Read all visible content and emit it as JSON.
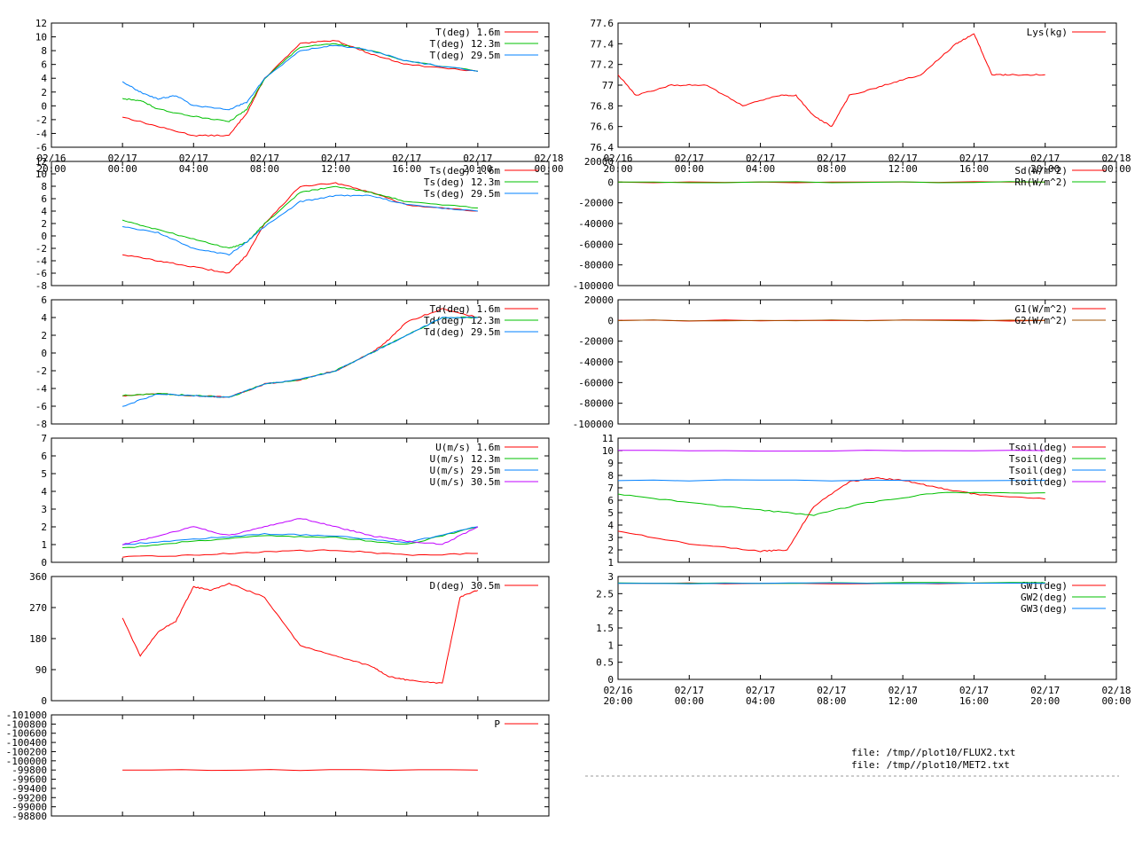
{
  "files": {
    "line1": "file: /tmp//plot10/FLUX2.txt",
    "line2": "file: /tmp//plot10/MET2.txt"
  },
  "colors": {
    "red": "#ff0000",
    "green": "#00c000",
    "blue": "#0080ff",
    "purple": "#c000ff",
    "dark_red": "#c00000",
    "brown": "#a05000",
    "magenta": "#ff00ff",
    "cyan": "#00c0c0"
  },
  "chart_data": [
    {
      "type": "line",
      "x_ticks": [
        "02/16\n20:00",
        "02/17\n00:00",
        "02/17\n04:00",
        "02/17\n08:00",
        "02/17\n12:00",
        "02/17\n16:00",
        "02/17\n20:00",
        "02/18\n00:00"
      ],
      "ylim": [
        -6,
        12
      ],
      "y_ticks": [
        "12",
        "10",
        "8",
        "6",
        "4",
        "2",
        "0",
        "-2",
        "-4",
        "-6"
      ],
      "grid": false,
      "legend": "top-right",
      "series": [
        {
          "name": "T(deg)  1.6m",
          "color": "#ff0000",
          "x": [
            4,
            6,
            8,
            10,
            11,
            12,
            14,
            16,
            18,
            20,
            24
          ],
          "y": [
            -1.6,
            -3,
            -4.3,
            -4.3,
            -1,
            4,
            9,
            9.5,
            7.5,
            6,
            5
          ]
        },
        {
          "name": "T(deg) 12.3m",
          "color": "#00c000",
          "x": [
            4,
            5,
            6,
            8,
            10,
            11,
            12,
            14,
            16,
            18,
            20,
            24
          ],
          "y": [
            1,
            0.8,
            -0.5,
            -1.5,
            -2.3,
            -0.5,
            4,
            8.5,
            9,
            8,
            6.5,
            5
          ]
        },
        {
          "name": "T(deg) 29.5m",
          "color": "#0080ff",
          "x": [
            4,
            5,
            6,
            7,
            8,
            10,
            11,
            12,
            14,
            16,
            18,
            20,
            24
          ],
          "y": [
            3.5,
            2,
            1,
            1.5,
            0,
            -0.5,
            0.5,
            4,
            8,
            8.8,
            8,
            6.5,
            5
          ]
        }
      ]
    },
    {
      "type": "line",
      "ylim": [
        -8,
        12
      ],
      "y_ticks": [
        "12",
        "10",
        "8",
        "6",
        "4",
        "2",
        "0",
        "-2",
        "-4",
        "-6",
        "-8"
      ],
      "legend": "top-right",
      "series": [
        {
          "name": "Ts(deg)  1.6m",
          "color": "#ff0000",
          "x": [
            4,
            6,
            8,
            10,
            11,
            12,
            14,
            16,
            18,
            20,
            24
          ],
          "y": [
            -3,
            -4,
            -5,
            -6,
            -3,
            2,
            8,
            8.5,
            7,
            5,
            4
          ]
        },
        {
          "name": "Ts(deg) 12.3m",
          "color": "#00c000",
          "x": [
            4,
            6,
            8,
            10,
            11,
            12,
            14,
            16,
            18,
            20,
            24
          ],
          "y": [
            2.5,
            1,
            -0.5,
            -2,
            -1,
            2,
            7,
            8,
            7,
            5.5,
            4.5
          ]
        },
        {
          "name": "Ts(deg) 29.5m",
          "color": "#0080ff",
          "x": [
            4,
            6,
            8,
            10,
            11,
            12,
            14,
            16,
            18,
            20,
            24
          ],
          "y": [
            1.5,
            0.5,
            -2,
            -3,
            -1,
            1.5,
            5.5,
            6.5,
            6.5,
            5,
            4
          ]
        }
      ]
    },
    {
      "type": "line",
      "ylim": [
        -8,
        6
      ],
      "y_ticks": [
        "6",
        "4",
        "2",
        "0",
        "-2",
        "-4",
        "-6",
        "-8"
      ],
      "legend": "top-right",
      "series": [
        {
          "name": "Td(deg)  1.6m",
          "color": "#ff0000",
          "x": [
            4,
            6,
            8,
            10,
            12,
            14,
            16,
            18,
            19,
            20,
            22,
            24
          ],
          "y": [
            -4.8,
            -4.6,
            -4.8,
            -5,
            -3.5,
            -3,
            -2,
            0,
            1.5,
            3.5,
            5,
            4
          ]
        },
        {
          "name": "Td(deg) 12.3m",
          "color": "#00c000",
          "x": [
            4,
            6,
            8,
            10,
            12,
            14,
            16,
            18,
            20,
            22,
            24
          ],
          "y": [
            -4.8,
            -4.6,
            -4.8,
            -5,
            -3.5,
            -3,
            -2,
            0,
            2,
            4,
            4
          ]
        },
        {
          "name": "Td(deg) 29.5m",
          "color": "#0080ff",
          "x": [
            4,
            6,
            8,
            10,
            12,
            14,
            16,
            18,
            20,
            22,
            24
          ],
          "y": [
            -6,
            -4.6,
            -4.8,
            -5,
            -3.5,
            -3,
            -2,
            0,
            2,
            4,
            4
          ]
        }
      ]
    },
    {
      "type": "line",
      "ylim": [
        0,
        7
      ],
      "y_ticks": [
        "7",
        "6",
        "5",
        "4",
        "3",
        "2",
        "1",
        "0"
      ],
      "legend": "top-right",
      "series": [
        {
          "name": "U(m/s)  1.6m",
          "color": "#ff0000",
          "x": [
            4,
            8,
            12,
            16,
            20,
            24
          ],
          "y": [
            0.3,
            0.4,
            0.6,
            0.7,
            0.4,
            0.5
          ]
        },
        {
          "name": "U(m/s) 12.3m",
          "color": "#00c000",
          "x": [
            4,
            8,
            12,
            16,
            20,
            24
          ],
          "y": [
            0.8,
            1.2,
            1.5,
            1.4,
            1,
            2
          ]
        },
        {
          "name": "U(m/s) 29.5m",
          "color": "#0080ff",
          "x": [
            4,
            8,
            12,
            16,
            20,
            24
          ],
          "y": [
            1,
            1.3,
            1.6,
            1.5,
            1.1,
            2
          ]
        },
        {
          "name": "U(m/s) 30.5m",
          "color": "#c000ff",
          "x": [
            4,
            6,
            8,
            10,
            12,
            14,
            16,
            18,
            20,
            22,
            24
          ],
          "y": [
            1,
            1.5,
            2,
            1.5,
            2,
            2.5,
            2,
            1.5,
            1.2,
            1,
            2
          ]
        }
      ]
    },
    {
      "type": "line",
      "ylim": [
        0,
        360
      ],
      "y_ticks": [
        "360",
        "270",
        "180",
        "90",
        "0"
      ],
      "legend": "top-right",
      "series": [
        {
          "name": "D(deg)  30.5m",
          "color": "#ff0000",
          "x": [
            4,
            5,
            6,
            7,
            8,
            9,
            10,
            12,
            14,
            16,
            18,
            19,
            20,
            22,
            23,
            24
          ],
          "y": [
            240,
            130,
            200,
            230,
            330,
            320,
            340,
            300,
            160,
            130,
            100,
            70,
            60,
            50,
            300,
            320
          ]
        }
      ]
    },
    {
      "type": "line",
      "ylim": [
        -101000,
        -98800
      ],
      "y_ticks": [
        "-101000",
        "-100800",
        "-100600",
        "-100400",
        "-100200",
        "-100000",
        "-99800",
        "-99600",
        "-99400",
        "-99200",
        "-99000",
        "-98800"
      ],
      "legend": "top-right",
      "series": [
        {
          "name": "P",
          "color": "#ff0000",
          "x": [
            4,
            24
          ],
          "y": [
            -100000,
            -100000
          ]
        }
      ]
    },
    {
      "type": "line",
      "x_ticks": [
        "02/16\n20:00",
        "02/17\n00:00",
        "02/17\n04:00",
        "02/17\n08:00",
        "02/17\n12:00",
        "02/17\n16:00",
        "02/17\n20:00",
        "02/18\n00:00"
      ],
      "ylim": [
        76.4,
        77.6
      ],
      "y_ticks": [
        "77.6",
        "77.4",
        "77.2",
        "77",
        "76.8",
        "76.6",
        "76.4"
      ],
      "legend": "top-right",
      "series": [
        {
          "name": "Lys(kg)",
          "color": "#ff0000",
          "x": [
            0,
            1,
            3,
            5,
            7,
            9,
            10,
            11,
            12,
            13,
            15,
            17,
            19,
            20,
            21,
            22,
            24
          ],
          "y": [
            77.1,
            76.9,
            77,
            77,
            76.8,
            76.9,
            76.9,
            76.7,
            76.6,
            76.9,
            77,
            77.1,
            77.4,
            77.5,
            77.1,
            77.1,
            77.1
          ]
        }
      ]
    },
    {
      "type": "line",
      "ylim": [
        -100000,
        20000
      ],
      "y_ticks": [
        "20000",
        "0",
        "-20000",
        "-40000",
        "-60000",
        "-80000",
        "-100000"
      ],
      "legend": "top-right",
      "series": [
        {
          "name": "Sd(W/m^2)",
          "color": "#ff0000",
          "x": [
            0,
            24
          ],
          "y": [
            0,
            0
          ]
        },
        {
          "name": "Rh(W/m^2)",
          "color": "#00c000",
          "x": [
            0,
            24
          ],
          "y": [
            0,
            0
          ]
        }
      ]
    },
    {
      "type": "line",
      "ylim": [
        -100000,
        20000
      ],
      "y_ticks": [
        "20000",
        "0",
        "-20000",
        "-40000",
        "-60000",
        "-80000",
        "-100000"
      ],
      "legend": "top-right",
      "series": [
        {
          "name": "G1(W/m^2)",
          "color": "#ff0000",
          "x": [
            0,
            24
          ],
          "y": [
            0,
            0
          ]
        },
        {
          "name": "G2(W/m^2)",
          "color": "#a05000",
          "x": [
            0,
            24
          ],
          "y": [
            0,
            0
          ]
        }
      ]
    },
    {
      "type": "line",
      "ylim": [
        1,
        11
      ],
      "y_ticks": [
        "11",
        "10",
        "9",
        "8",
        "7",
        "6",
        "5",
        "4",
        "3",
        "2",
        "1"
      ],
      "legend": "top-right",
      "series": [
        {
          "name": "Tsoil(deg)",
          "color": "#ff0000",
          "x": [
            0,
            4,
            8,
            9.5,
            11,
            13,
            14.5,
            16,
            18,
            20,
            24
          ],
          "y": [
            3.5,
            2.5,
            1.9,
            2,
            5.5,
            7.5,
            7.8,
            7.6,
            7,
            6.5,
            6.1
          ]
        },
        {
          "name": "Tsoil(deg)",
          "color": "#00c000",
          "x": [
            0,
            4,
            8,
            11,
            14,
            18,
            24
          ],
          "y": [
            6.5,
            5.8,
            5.2,
            4.8,
            5.8,
            6.6,
            6.6
          ]
        },
        {
          "name": "Tsoil(deg)",
          "color": "#0080ff",
          "x": [
            0,
            24
          ],
          "y": [
            7.6,
            7.6
          ]
        },
        {
          "name": "Tsoil(deg)",
          "color": "#c000ff",
          "x": [
            0,
            24
          ],
          "y": [
            10,
            10
          ]
        }
      ]
    },
    {
      "type": "line",
      "x_ticks": [
        "02/16\n20:00",
        "02/17\n00:00",
        "02/17\n04:00",
        "02/17\n08:00",
        "02/17\n12:00",
        "02/17\n16:00",
        "02/17\n20:00",
        "02/18\n00:00"
      ],
      "ylim": [
        0,
        3
      ],
      "y_ticks": [
        "3",
        "2.5",
        "2",
        "1.5",
        "1",
        "0.5",
        "0"
      ],
      "legend": "top-right",
      "series": [
        {
          "name": "GW1(deg)",
          "color": "#ff0000",
          "x": [
            0,
            24
          ],
          "y": [
            2.8,
            2.8
          ]
        },
        {
          "name": "GW2(deg)",
          "color": "#00c000",
          "x": [
            0,
            24
          ],
          "y": [
            2.8,
            2.82
          ]
        },
        {
          "name": "GW3(deg)",
          "color": "#0080ff",
          "x": [
            0,
            24
          ],
          "y": [
            2.8,
            2.8
          ]
        }
      ]
    }
  ]
}
